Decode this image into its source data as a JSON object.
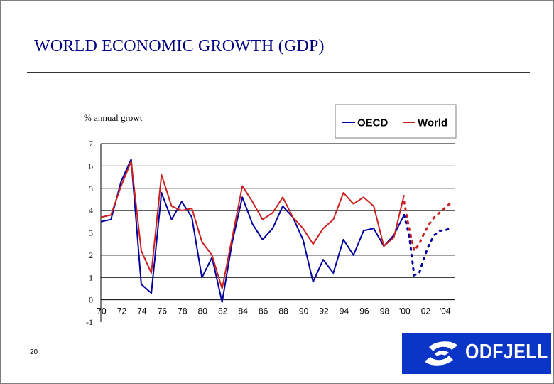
{
  "slide": {
    "title": "WORLD ECONOMIC GROWTH (GDP)",
    "page_number": "20",
    "logo_text": "ODFJELL"
  },
  "chart_data": {
    "type": "line",
    "ylabel": "% annual growt",
    "ylim": [
      -1,
      7
    ],
    "yticks": [
      {
        "value": 7,
        "label": "7"
      },
      {
        "value": 6,
        "label": "6"
      },
      {
        "value": 5,
        "label": "5"
      },
      {
        "value": 4,
        "label": "4"
      },
      {
        "value": 3,
        "label": "3"
      },
      {
        "value": 2,
        "label": "2"
      },
      {
        "value": 1,
        "label": "1"
      },
      {
        "value": 0,
        "label": "0"
      },
      {
        "value": -1,
        "label": "-1"
      }
    ],
    "xlim": [
      1970,
      2005
    ],
    "xticks": [
      {
        "value": 1970,
        "label": "70"
      },
      {
        "value": 1972,
        "label": "72"
      },
      {
        "value": 1974,
        "label": "74"
      },
      {
        "value": 1976,
        "label": "76"
      },
      {
        "value": 1978,
        "label": "78"
      },
      {
        "value": 1980,
        "label": "80"
      },
      {
        "value": 1982,
        "label": "82"
      },
      {
        "value": 1984,
        "label": "84"
      },
      {
        "value": 1986,
        "label": "86"
      },
      {
        "value": 1988,
        "label": "88"
      },
      {
        "value": 1990,
        "label": "90"
      },
      {
        "value": 1992,
        "label": "92"
      },
      {
        "value": 1994,
        "label": "94"
      },
      {
        "value": 1996,
        "label": "96"
      },
      {
        "value": 1998,
        "label": "98"
      },
      {
        "value": 2000,
        "label": "'00"
      },
      {
        "value": 2002,
        "label": "'02"
      },
      {
        "value": 2004,
        "label": "'04"
      }
    ],
    "grid": true,
    "legend": "top-right",
    "series": [
      {
        "name": "OECD",
        "color": "#0000a0",
        "x": [
          1970,
          1971,
          1972,
          1973,
          1974,
          1975,
          1976,
          1977,
          1978,
          1979,
          1980,
          1981,
          1982,
          1983,
          1984,
          1985,
          1986,
          1987,
          1988,
          1989,
          1990,
          1991,
          1992,
          1993,
          1994,
          1995,
          1996,
          1997,
          1998,
          1999,
          2000
        ],
        "values": [
          3.5,
          3.6,
          5.3,
          6.3,
          0.7,
          0.3,
          4.8,
          3.6,
          4.4,
          3.7,
          1.0,
          1.9,
          -0.1,
          2.6,
          4.6,
          3.4,
          2.7,
          3.2,
          4.2,
          3.7,
          2.7,
          0.8,
          1.8,
          1.2,
          2.7,
          2.0,
          3.1,
          3.2,
          2.4,
          2.9,
          3.8
        ],
        "forecast": {
          "x": [
            2000,
            2000.5,
            2001,
            2001.5,
            2002,
            2002.5,
            2003,
            2003.5,
            2004,
            2004.5
          ],
          "values": [
            3.8,
            2.9,
            1.1,
            1.2,
            1.9,
            2.5,
            2.9,
            3.1,
            3.1,
            3.2
          ]
        }
      },
      {
        "name": "World",
        "color": "#cc2020",
        "x": [
          1970,
          1971,
          1972,
          1973,
          1974,
          1975,
          1976,
          1977,
          1978,
          1979,
          1980,
          1981,
          1982,
          1983,
          1984,
          1985,
          1986,
          1987,
          1988,
          1989,
          1990,
          1991,
          1992,
          1993,
          1994,
          1995,
          1996,
          1997,
          1998,
          1999,
          2000
        ],
        "values": [
          3.7,
          3.8,
          5.1,
          6.2,
          2.2,
          1.2,
          5.6,
          4.2,
          4.0,
          4.1,
          2.6,
          2.0,
          0.5,
          2.8,
          5.1,
          4.4,
          3.6,
          3.9,
          4.6,
          3.7,
          3.2,
          2.5,
          3.2,
          3.6,
          4.8,
          4.3,
          4.6,
          4.2,
          2.4,
          2.8,
          4.7
        ],
        "forecast": {
          "x": [
            2000,
            2000.5,
            2001,
            2001.5,
            2002,
            2002.5,
            2003,
            2003.5,
            2004,
            2004.5
          ],
          "values": [
            4.4,
            3.2,
            2.2,
            2.5,
            3.0,
            3.4,
            3.7,
            3.9,
            4.1,
            4.3
          ]
        }
      }
    ]
  }
}
